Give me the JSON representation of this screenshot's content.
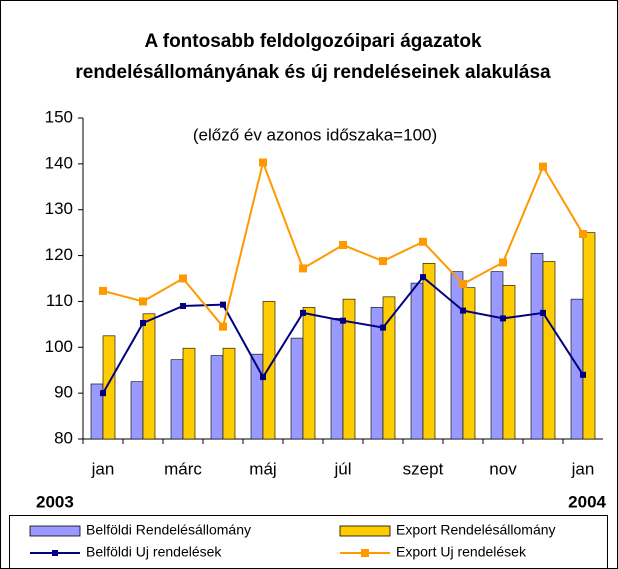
{
  "chart_data": {
    "type": "bar",
    "title": "A fontosabb feldolgozóipari ágazatok rendelésállományának és új rendeléseinek alakulása",
    "subtitle": "(előző év azonos időszaka=100)",
    "categories": [
      "jan",
      null,
      "márc",
      null,
      "máj",
      null,
      "júl",
      null,
      "szept",
      null,
      "nov",
      null,
      "jan"
    ],
    "annotations": [
      "2003",
      "2004"
    ],
    "ylim": [
      80,
      150
    ],
    "yticks": [
      80,
      90,
      100,
      110,
      120,
      130,
      140,
      150
    ],
    "grid": false,
    "legend": "bottom",
    "series": [
      {
        "name": "Belföldi Rendelésállomány",
        "type": "bar",
        "color": "#9999ff",
        "values": [
          92,
          92.5,
          97.3,
          98.2,
          98.5,
          102,
          106.3,
          108.7,
          114,
          116.5,
          116.5,
          120.5,
          110.5
        ]
      },
      {
        "name": "Export Rendelésállomány",
        "type": "bar",
        "color": "#ffcc00",
        "values": [
          102.5,
          107.3,
          99.8,
          99.8,
          110,
          108.7,
          110.5,
          111,
          118.3,
          113,
          113.5,
          118.7,
          125
        ]
      },
      {
        "name": "Belföldi Uj rendelések",
        "type": "line",
        "color": "#000080",
        "values": [
          90,
          105.3,
          109,
          109.3,
          93.5,
          107.5,
          105.8,
          104.3,
          115.3,
          108,
          106.3,
          107.5,
          94
        ]
      },
      {
        "name": "Export Uj rendelések",
        "type": "line",
        "color": "#ff9900",
        "values": [
          112.3,
          110,
          115,
          104.5,
          140.3,
          117.2,
          122.3,
          118.8,
          123,
          113.8,
          118.5,
          139.4,
          124.7
        ]
      }
    ]
  }
}
